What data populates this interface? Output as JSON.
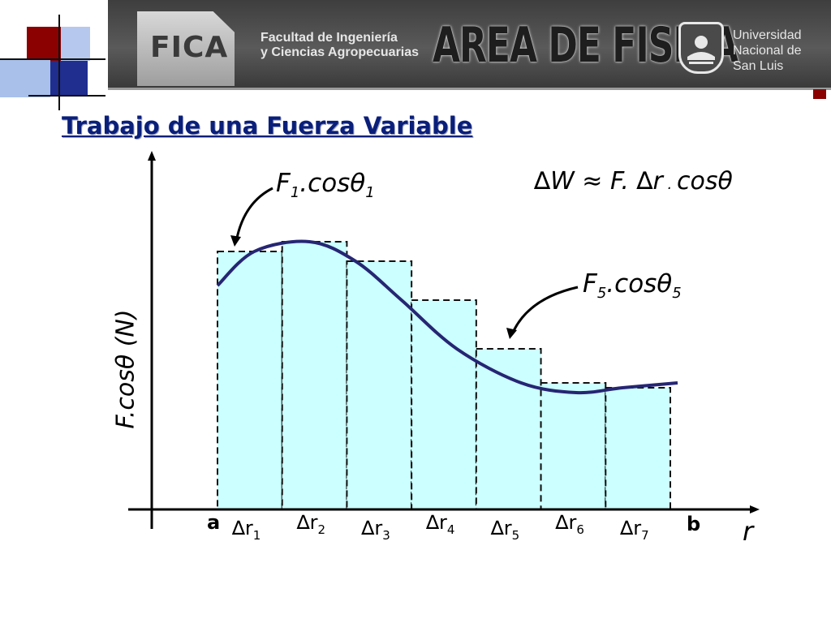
{
  "header": {
    "logo_text": "FICA",
    "faculty_line1": "Facultad de Ingeniería",
    "faculty_line2": "y Ciencias Agropecuarias",
    "area_title": "AREA DE FISICA",
    "university_line1": "Universidad",
    "university_line2": "Nacional de",
    "university_line3": "San Luis"
  },
  "slide": {
    "title": "Trabajo de una Fuerza Variable"
  },
  "formula": {
    "delta_w": "∆W ≈ F. ∆r",
    "dot": " . ",
    "cos": "cosθ"
  },
  "annotations": {
    "f1_base": "F",
    "f1_sub": "1",
    "f1_mid": ".cosθ",
    "f1_sub2": "1",
    "f5_base": "F",
    "f5_sub": "5",
    "f5_mid": ".cosθ",
    "f5_sub2": "5"
  },
  "chart_data": {
    "type": "area",
    "ylabel": "F.cosθ (N)",
    "xlabel": "r",
    "x_start_label": "a",
    "x_end_label": "b",
    "segments": [
      {
        "label": "∆r",
        "sub": "1",
        "height": 0.53
      },
      {
        "label": "∆r",
        "sub": "2",
        "height": 0.55
      },
      {
        "label": "∆r",
        "sub": "3",
        "height": 0.51
      },
      {
        "label": "∆r",
        "sub": "4",
        "height": 0.43
      },
      {
        "label": "∆r",
        "sub": "5",
        "height": 0.33
      },
      {
        "label": "∆r",
        "sub": "6",
        "height": 0.26
      },
      {
        "label": "∆r",
        "sub": "7",
        "height": 0.25
      }
    ],
    "curve": [
      {
        "x": 0.0,
        "y": 0.46
      },
      {
        "x": 0.08,
        "y": 0.53
      },
      {
        "x": 0.2,
        "y": 0.55
      },
      {
        "x": 0.3,
        "y": 0.51
      },
      {
        "x": 0.4,
        "y": 0.43
      },
      {
        "x": 0.52,
        "y": 0.33
      },
      {
        "x": 0.66,
        "y": 0.26
      },
      {
        "x": 0.78,
        "y": 0.24
      },
      {
        "x": 0.88,
        "y": 0.25
      },
      {
        "x": 1.0,
        "y": 0.26
      }
    ],
    "colors": {
      "fill": "#ccffff",
      "curve": "#262673",
      "title": "#0a1f7a"
    }
  }
}
